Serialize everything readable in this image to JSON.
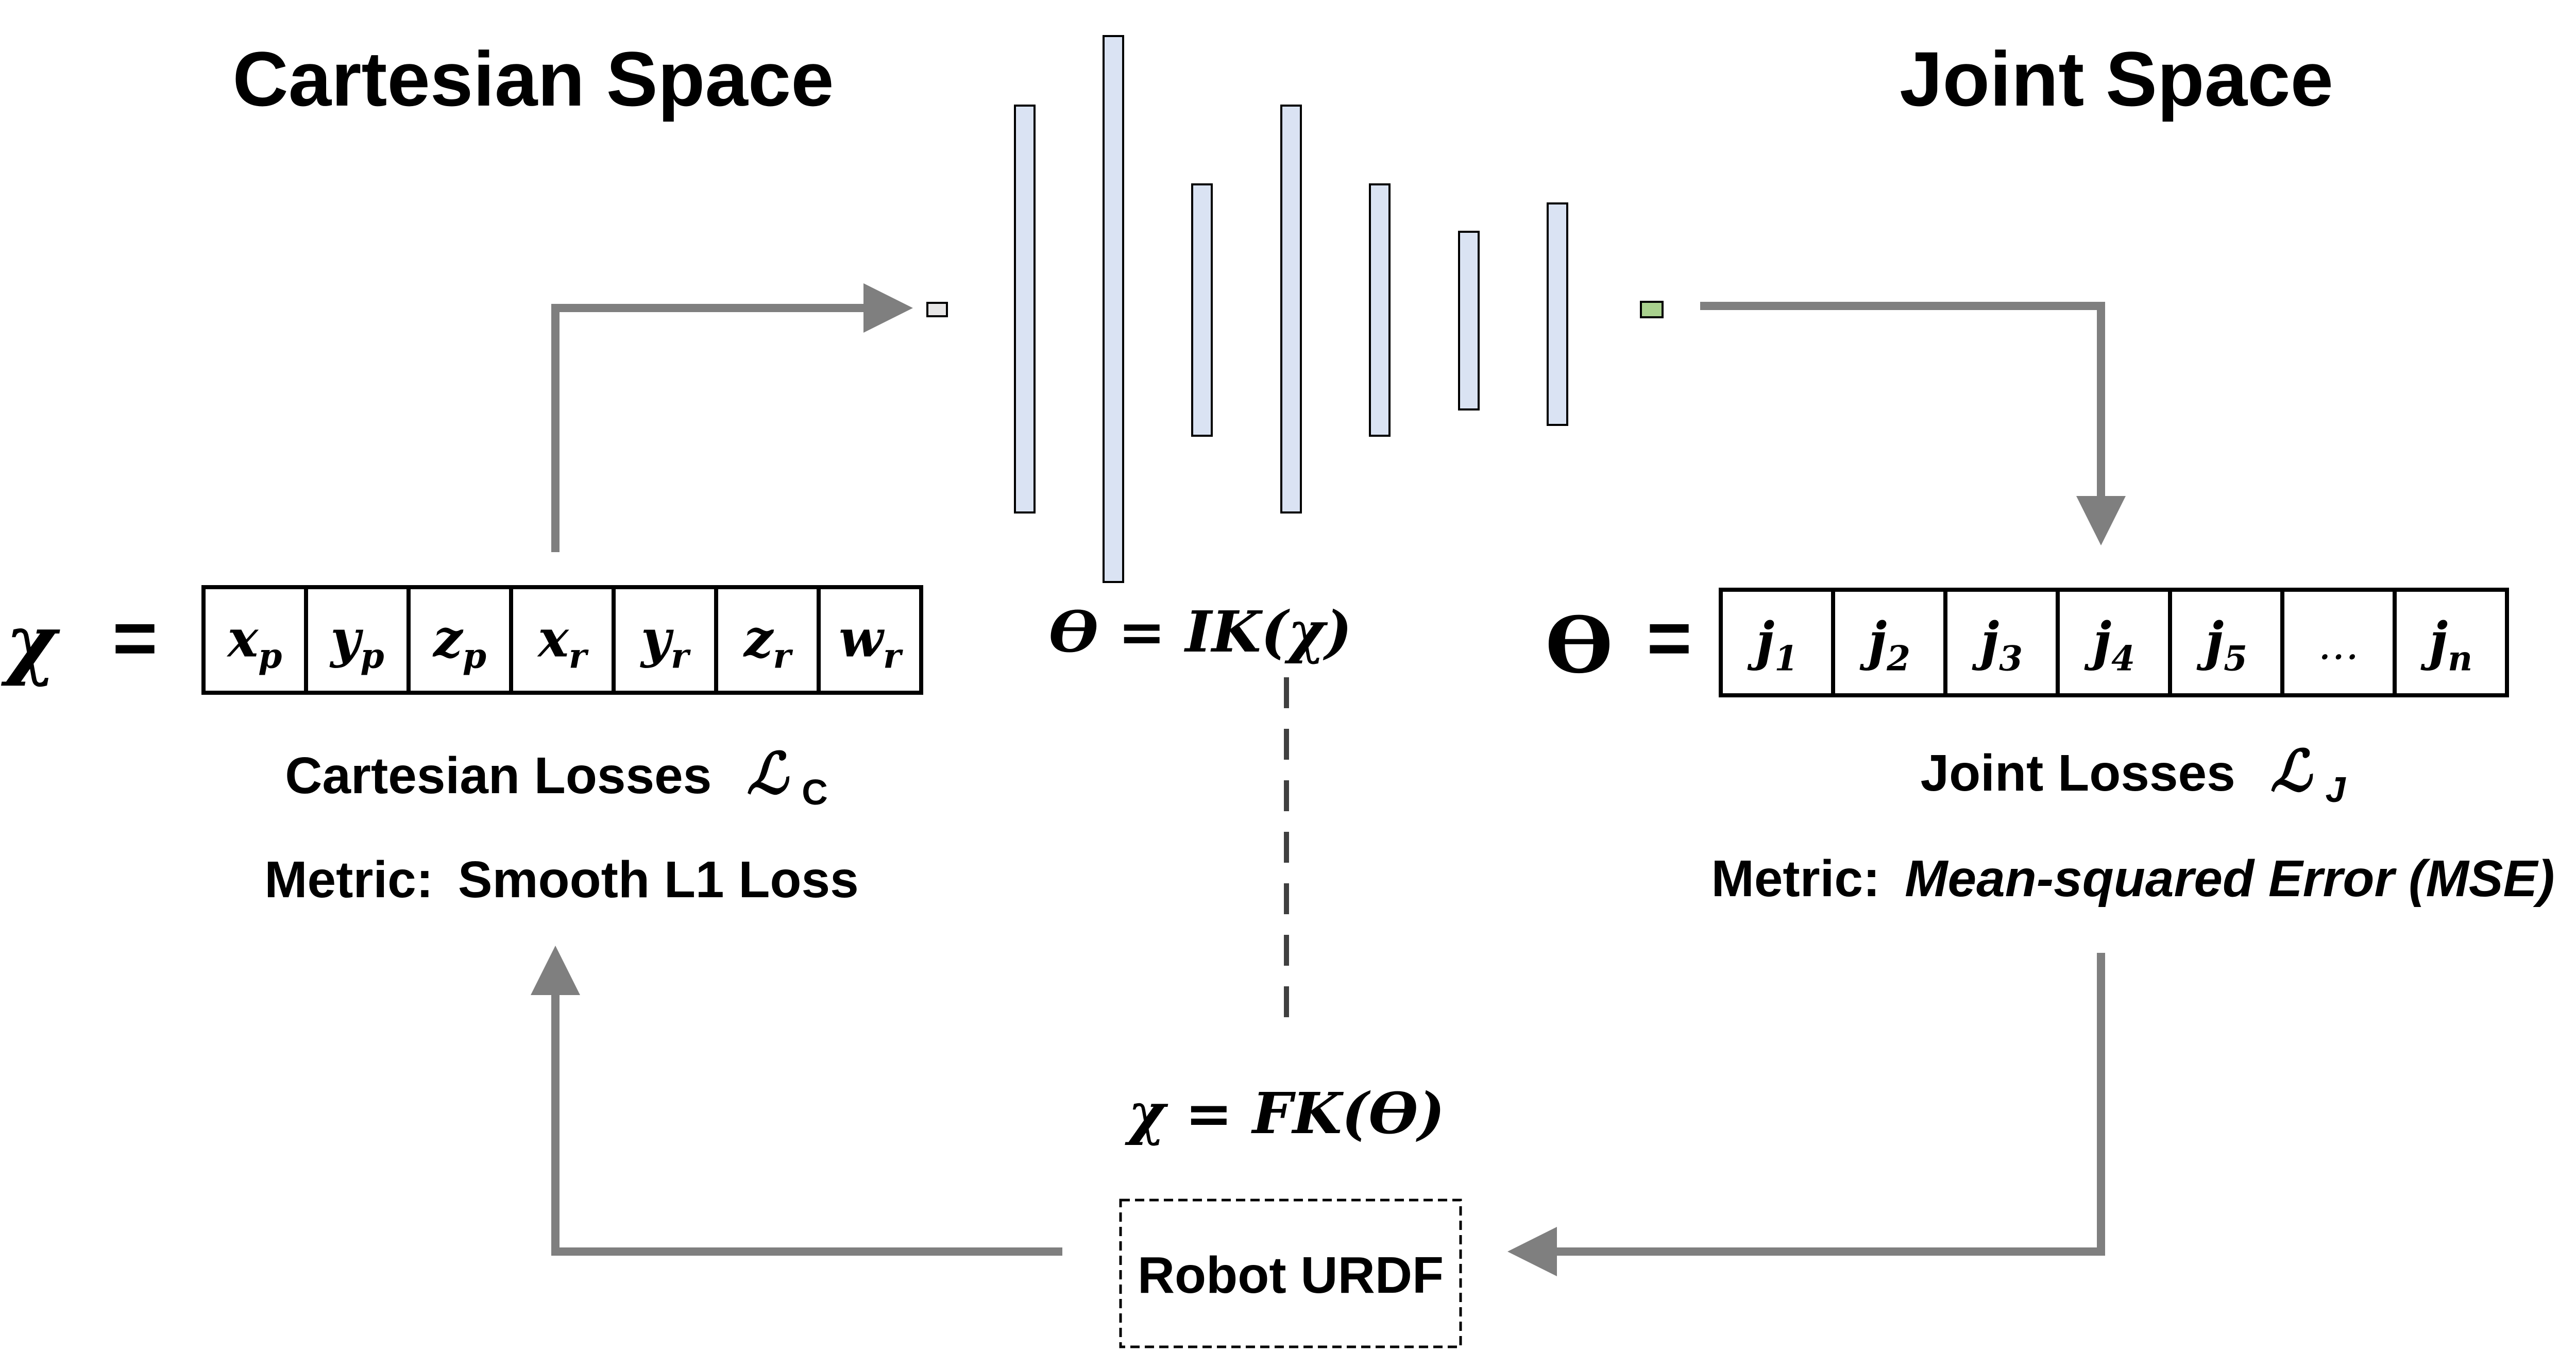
{
  "headings": {
    "cartesian": "Cartesian Space",
    "joint": "Joint Space"
  },
  "left_vector": {
    "symbol": "χ",
    "equals": "=",
    "cells": [
      {
        "base": "x",
        "sub": "p"
      },
      {
        "base": "y",
        "sub": "p"
      },
      {
        "base": "z",
        "sub": "p"
      },
      {
        "base": "x",
        "sub": "r"
      },
      {
        "base": "y",
        "sub": "r"
      },
      {
        "base": "z",
        "sub": "r"
      },
      {
        "base": "w",
        "sub": "r"
      }
    ]
  },
  "right_vector": {
    "symbol": "ϴ",
    "equals": "=",
    "cells": [
      {
        "base": "j",
        "sub": "1"
      },
      {
        "base": "j",
        "sub": "2"
      },
      {
        "base": "j",
        "sub": "3"
      },
      {
        "base": "j",
        "sub": "4"
      },
      {
        "base": "j",
        "sub": "5"
      },
      {
        "base": "…",
        "sub": ""
      },
      {
        "base": "j",
        "sub": "n"
      }
    ]
  },
  "ik_equation": "ϴ = IK(χ)",
  "fk_equation": "χ = FK(ϴ)",
  "cartesian_losses": {
    "label": "Cartesian Losses",
    "symbol": "ℒ",
    "symbol_sub": "C",
    "metric_prefix": "Metric:",
    "metric": "Smooth L1 Loss"
  },
  "joint_losses": {
    "label": "Joint Losses",
    "symbol": "ℒ",
    "symbol_sub": "J",
    "metric_prefix": "Metric:",
    "metric": "Mean-squared Error (MSE)"
  },
  "robot_box": "Robot URDF",
  "colors": {
    "arrow": "#7f7f7f",
    "layer_fill": "#dae3f3",
    "input_node_fill": "#e7e6e6",
    "output_node_fill": "#a9d18e",
    "stroke": "#000000"
  },
  "network": {
    "layer_count": 7,
    "icon": "neural-network-layers"
  }
}
